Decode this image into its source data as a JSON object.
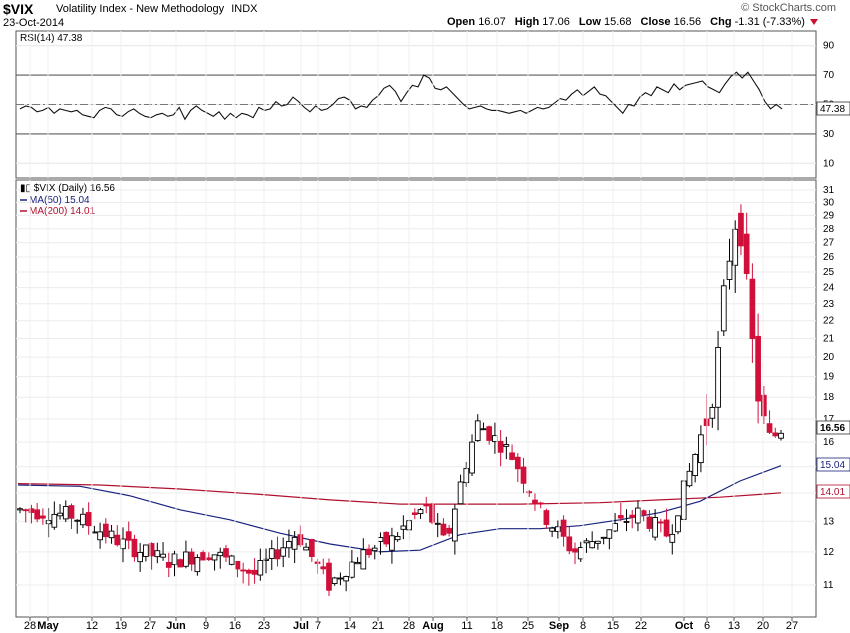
{
  "header": {
    "symbol": "$VIX",
    "description": "Volatility Index - New Methodology",
    "exchange": "INDX",
    "date": "23-Oct-2014",
    "brand": "© StockCharts.com",
    "quote": {
      "open_label": "Open",
      "open": "16.07",
      "high_label": "High",
      "high": "17.06",
      "low_label": "Low",
      "low": "15.68",
      "close_label": "Close",
      "close": "16.56",
      "chg_label": "Chg",
      "chg": "-1.31 (-7.33%)"
    }
  },
  "chart_data": [
    {
      "type": "line",
      "panel": "indicator",
      "legend": "RSI(14) 47.38",
      "last_value_tag": "47.38",
      "ylim": [
        0,
        100
      ],
      "y_ticks": [
        "90",
        "70",
        "50",
        "30",
        "10"
      ],
      "reference_lines": [
        70,
        50,
        30
      ],
      "series": [
        {
          "name": "RSI(14)",
          "values": [
            47,
            49,
            48,
            45,
            46,
            48,
            44,
            47,
            46,
            45,
            46,
            43,
            42,
            41,
            46,
            48,
            47,
            43,
            42,
            45,
            47,
            44,
            42,
            41,
            43,
            44,
            42,
            43,
            48,
            40,
            46,
            49,
            46,
            44,
            42,
            45,
            40,
            44,
            41,
            44,
            43,
            41,
            48,
            46,
            47,
            52,
            49,
            50,
            55,
            52,
            48,
            45,
            49,
            46,
            47,
            50,
            54,
            55,
            53,
            47,
            49,
            48,
            53,
            56,
            61,
            63,
            59,
            52,
            58,
            63,
            62,
            70,
            68,
            61,
            60,
            62,
            58,
            54,
            50,
            47,
            48,
            49,
            47,
            46,
            46,
            45,
            44,
            45,
            46,
            44,
            46,
            48,
            47,
            48,
            51,
            54,
            53,
            57,
            60,
            56,
            59,
            62,
            57,
            56,
            52,
            48,
            44,
            50,
            49,
            55,
            58,
            56,
            62,
            60,
            58,
            64,
            60,
            63,
            64,
            65,
            66,
            62,
            60,
            58,
            64,
            69,
            72,
            68,
            72,
            66,
            60,
            52,
            47,
            50,
            47
          ]
        }
      ]
    },
    {
      "type": "candlestick",
      "panel": "price",
      "legend": "$VIX (Daily) 16.56",
      "last_value_tag": "16.56",
      "y_scale": "log",
      "ylim": [
        10,
        32
      ],
      "y_ticks": [
        "31",
        "30",
        "29",
        "28",
        "27",
        "26",
        "25",
        "24",
        "23",
        "22",
        "21",
        "20",
        "19",
        "18",
        "17",
        "16",
        "15",
        "14",
        "13",
        "12",
        "11"
      ],
      "x_tick_labels": [
        "28",
        "May",
        "12",
        "19",
        "27",
        "Jun",
        "9",
        "16",
        "23",
        "Jul",
        "7",
        "14",
        "21",
        "28",
        "Aug",
        "11",
        "18",
        "25",
        "Sep",
        "8",
        "15",
        "22",
        "Oct",
        "6",
        "13",
        "20",
        "27"
      ],
      "overlays": [
        {
          "name": "MA(50) 15.04",
          "color": "#1a237e",
          "last_value_tag": "15.04"
        },
        {
          "name": "MA(200) 14.01",
          "color": "#b0102e",
          "last_value_tag": "14.01"
        }
      ],
      "colors": {
        "up_hollow": "#000000",
        "down_filled": "#d0103a"
      }
    }
  ]
}
